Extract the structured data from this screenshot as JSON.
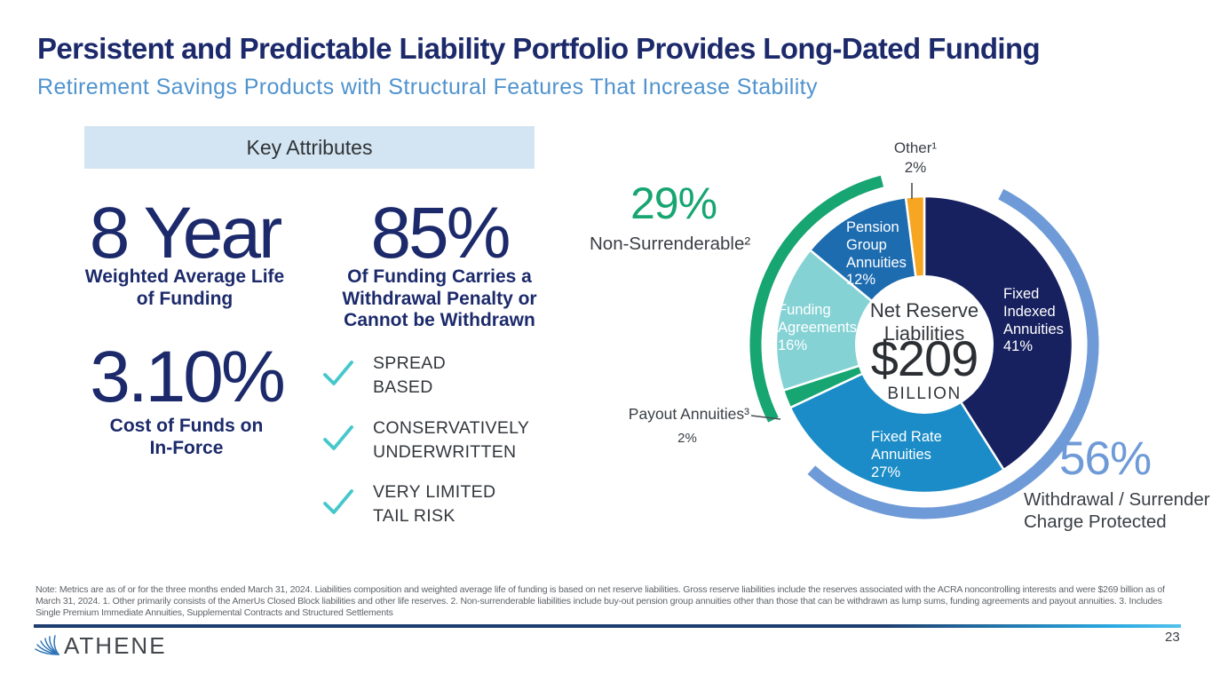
{
  "slide": {
    "title": "Persistent and Predictable Liability Portfolio Provides Long-Dated Funding",
    "subtitle": "Retirement Savings Products with Structural Features That Increase Stability",
    "page_number": "23",
    "brand": "ATHENE"
  },
  "key_attributes": {
    "header": "Key Attributes",
    "stats": [
      {
        "value": "8 Year",
        "caption": "Weighted Average Life\nof Funding"
      },
      {
        "value": "85%",
        "caption": "Of Funding Carries a\nWithdrawal Penalty or\nCannot be Withdrawn"
      },
      {
        "value": "3.10%",
        "caption": "Cost of Funds on\nIn-Force"
      }
    ],
    "checklist": [
      {
        "label": "SPREAD\nBASED"
      },
      {
        "label": "CONSERVATIVELY\nUNDERWRITTEN"
      },
      {
        "label": "VERY LIMITED\nTAIL RISK"
      }
    ],
    "check_color": "#45C8CB"
  },
  "chart_data": {
    "type": "pie",
    "title": "Net Reserve Liabilities",
    "center": {
      "lines": "Net Reserve\nLiabilities",
      "value": "$209",
      "unit": "BILLION"
    },
    "slices": [
      {
        "label": "Fixed Indexed Annuities",
        "pct": 41,
        "color": "#17215F",
        "display": "Fixed\nIndexed\nAnnuities\n41%"
      },
      {
        "label": "Fixed Rate Annuities",
        "pct": 27,
        "color": "#1B8CC7",
        "display": "Fixed Rate\nAnnuities\n27%"
      },
      {
        "label": "Payout Annuities³",
        "pct": 2,
        "color": "#17A572",
        "display": "Payout Annuities³",
        "pct_display": "2%"
      },
      {
        "label": "Funding Agreements",
        "pct": 16,
        "color": "#85D2D5",
        "display": "Funding\nAgreements\n16%"
      },
      {
        "label": "Pension Group Annuities",
        "pct": 12,
        "color": "#1E6CB0",
        "display": "Pension\nGroup\nAnnuities\n12%"
      },
      {
        "label": "Other¹",
        "pct": 2,
        "color": "#F6A621",
        "display": "Other¹\n2%"
      }
    ],
    "annotations": [
      {
        "value": "29%",
        "label": "Non-Surrenderable²",
        "color": "#17A572",
        "start_deg": 243.5,
        "end_deg": 345.5
      },
      {
        "value": "56%",
        "label": "Withdrawal / Surrender\nCharge Protected",
        "color": "#6E9AD7",
        "start_deg": 27,
        "end_deg": 222
      }
    ],
    "layout": {
      "start_angle_deg": 0,
      "direction": "clockwise",
      "legend": "labels-inside"
    }
  },
  "footnote": "Note: Metrics are as of or for the three months ended March 31, 2024. Liabilities composition and weighted average life of funding is based on net reserve liabilities. Gross reserve liabilities include the reserves associated with the ACRA noncontrolling interests and were $269 billion as of March 31, 2024. 1. Other primarily consists of the AmerUs Closed Block liabilities and other life reserves. 2. Non-surrenderable liabilities include buy-out pension group annuities other than those that can be withdrawn as lump sums, funding agreements and payout annuities. 3. Includes Single Premium Immediate Annuities, Supplemental Contracts and Structured Settlements"
}
